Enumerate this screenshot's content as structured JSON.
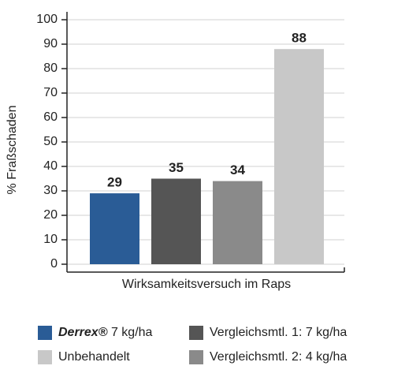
{
  "chart_data": {
    "type": "bar",
    "x_label": "Wirksamkeitsversuch im Raps",
    "y_label": "% Fraßschaden",
    "categories": [
      null
    ],
    "series": [
      {
        "name": "Derrex® 7 kg/ha",
        "color": "#2a5c96",
        "values": [
          29
        ]
      },
      {
        "name": "Vergleichsmtl. 1: 7 kg/ha",
        "color": "#555555",
        "values": [
          35
        ]
      },
      {
        "name": "Vergleichsmtl. 2: 4 kg/ha",
        "color": "#8a8a8a",
        "values": [
          34
        ]
      },
      {
        "name": "Unbehandelt",
        "color": "#c8c8c8",
        "values": [
          88
        ]
      }
    ],
    "ylim": [
      0,
      100
    ],
    "yticks": [
      0,
      10,
      20,
      30,
      40,
      50,
      60,
      70,
      80,
      90,
      100
    ],
    "grid": true,
    "data_labels": true
  }
}
